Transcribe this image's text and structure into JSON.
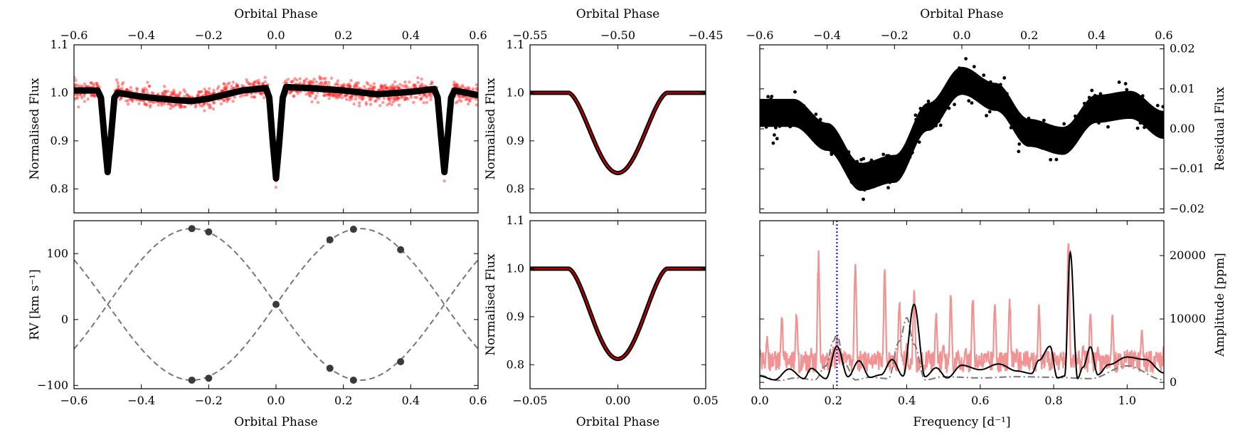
{
  "figure": {
    "panels": {
      "lc": {
        "ylabel": "Normalised Flux",
        "top_xlabel": "Orbital Phase",
        "xlim": [
          -0.6,
          0.6
        ],
        "ylim": [
          0.75,
          1.1
        ],
        "xticks": [
          -0.6,
          -0.4,
          -0.2,
          0.0,
          0.2,
          0.4,
          0.6
        ],
        "xtick_labels": [
          "−0.6",
          "−0.4",
          "−0.2",
          "0.0",
          "0.2",
          "0.4",
          "0.6"
        ],
        "yticks": [
          0.8,
          0.9,
          1.0,
          1.1
        ],
        "ytick_labels": [
          "0.8",
          "0.9",
          "1.0",
          "1.1"
        ]
      },
      "rv": {
        "ylabel": "RV [km s⁻¹]",
        "xlabel": "Orbital Phase",
        "xlim": [
          -0.6,
          0.6
        ],
        "ylim": [
          -105,
          150
        ],
        "xticks": [
          -0.6,
          -0.4,
          -0.2,
          0.0,
          0.2,
          0.4,
          0.6
        ],
        "xtick_labels": [
          "−0.6",
          "−0.4",
          "−0.2",
          "0.0",
          "0.2",
          "0.4",
          "0.6"
        ],
        "yticks": [
          -100,
          0,
          100
        ],
        "ytick_labels": [
          "−100",
          "0",
          "100"
        ]
      },
      "ecl_top": {
        "ylabel": "Normalised Flux",
        "top_xlabel": "Orbital Phase",
        "xlim": [
          -0.55,
          -0.45
        ],
        "ylim": [
          0.75,
          1.1
        ],
        "xticks": [
          -0.55,
          -0.5,
          -0.45
        ],
        "xtick_labels": [
          "−0.55",
          "−0.50",
          "−0.45"
        ],
        "yticks": [
          0.8,
          0.9,
          1.0,
          1.1
        ],
        "ytick_labels": [
          "0.8",
          "0.9",
          "1.0",
          "1.1"
        ]
      },
      "ecl_bot": {
        "ylabel": "Normalised Flux",
        "xlabel": "Orbital Phase",
        "xlim": [
          -0.05,
          0.05
        ],
        "ylim": [
          0.75,
          1.1
        ],
        "xticks": [
          -0.05,
          0.0,
          0.05
        ],
        "xtick_labels": [
          "−0.05",
          "0.00",
          "0.05"
        ],
        "yticks": [
          0.8,
          0.9,
          1.0,
          1.1
        ],
        "ytick_labels": [
          "0.8",
          "0.9",
          "1.0",
          "1.1"
        ]
      },
      "resid": {
        "ylabel": "Residual Flux",
        "top_xlabel": "Orbital Phase",
        "xlim": [
          -0.6,
          0.6
        ],
        "ylim": [
          -0.021,
          0.021
        ],
        "xticks": [
          -0.6,
          -0.4,
          -0.2,
          0.0,
          0.2,
          0.4,
          0.6
        ],
        "xtick_labels": [
          "−0.6",
          "−0.4",
          "−0.2",
          "0.0",
          "0.2",
          "0.4",
          "0.6"
        ],
        "yticks": [
          -0.02,
          -0.01,
          0.0,
          0.01,
          0.02
        ],
        "ytick_labels": [
          "−0.02",
          "−0.01",
          "0.00",
          "0.01",
          "0.02"
        ]
      },
      "periodogram": {
        "ylabel": "Amplitude [ppm]",
        "xlabel": "Frequency [d⁻¹]",
        "xlim": [
          0.0,
          1.1
        ],
        "ylim": [
          -1000,
          25500
        ],
        "xticks": [
          0.0,
          0.2,
          0.4,
          0.6,
          0.8,
          1.0
        ],
        "xtick_labels": [
          "0.0",
          "0.2",
          "0.4",
          "0.6",
          "0.8",
          "1.0"
        ],
        "yticks": [
          0,
          10000,
          20000
        ],
        "ytick_labels": [
          "0",
          "10000",
          "20000"
        ]
      }
    }
  },
  "chart_data": [
    {
      "type": "scatter",
      "panel": "lc",
      "description_note": "Phase-folded light curve with eclipse model",
      "model": {
        "x": [
          -0.6,
          -0.53,
          -0.52,
          -0.51,
          -0.5,
          -0.49,
          -0.48,
          -0.47,
          -0.4,
          -0.3,
          -0.25,
          -0.2,
          -0.1,
          -0.03,
          -0.02,
          -0.01,
          0.0,
          0.01,
          0.02,
          0.03,
          0.1,
          0.2,
          0.3,
          0.4,
          0.47,
          0.48,
          0.49,
          0.5,
          0.51,
          0.52,
          0.53,
          0.6
        ],
        "y": [
          1.005,
          1.005,
          0.99,
          0.91,
          0.835,
          0.91,
          0.99,
          1.0,
          0.992,
          0.985,
          0.983,
          0.988,
          1.005,
          1.01,
          0.99,
          0.9,
          0.822,
          0.9,
          0.99,
          1.012,
          1.01,
          1.005,
          0.997,
          1.002,
          1.008,
          0.99,
          0.91,
          0.835,
          0.91,
          0.99,
          1.005,
          0.995
        ]
      },
      "observations_scatter": 0.018,
      "colors": {
        "observations": "#ff2020",
        "model": "#000000"
      }
    },
    {
      "type": "scatter",
      "panel": "rv",
      "series": [
        {
          "name": "primary",
          "x": [
            -0.25,
            -0.2,
            0.0,
            0.16,
            0.23,
            0.37
          ],
          "y": [
            138,
            133,
            23,
            121,
            137,
            106
          ]
        },
        {
          "name": "secondary",
          "x": [
            -0.25,
            -0.2,
            0.16,
            0.23,
            0.37
          ],
          "y": [
            -92,
            -89,
            -74,
            -92,
            -64
          ]
        }
      ],
      "model": {
        "gamma": 23,
        "K1": 115,
        "K2": 115
      },
      "colors": {
        "points": "#3a3a3a",
        "model": "#777777"
      }
    },
    {
      "type": "line",
      "panel": "ecl_top",
      "model": {
        "x": [
          -0.55,
          -0.528,
          -0.5,
          -0.472,
          -0.45
        ],
        "y": [
          1.0,
          1.0,
          0.833,
          1.0,
          1.0
        ]
      },
      "colors": {
        "observations": "#000000",
        "model": "#cc0000"
      }
    },
    {
      "type": "line",
      "panel": "ecl_bot",
      "model": {
        "x": [
          -0.05,
          -0.028,
          0.0,
          0.028,
          0.05
        ],
        "y": [
          1.0,
          1.0,
          0.812,
          1.0,
          1.0
        ]
      },
      "colors": {
        "observations": "#000000",
        "model": "#cc0000"
      }
    },
    {
      "type": "scatter",
      "panel": "resid",
      "model": {
        "x": [
          -0.6,
          -0.5,
          -0.4,
          -0.3,
          -0.2,
          -0.1,
          0.0,
          0.1,
          0.2,
          0.3,
          0.4,
          0.5,
          0.6
        ],
        "y": [
          0.004,
          0.004,
          -0.002,
          -0.012,
          -0.01,
          0.003,
          0.012,
          0.008,
          -0.001,
          -0.003,
          0.005,
          0.006,
          0.001
        ]
      },
      "band_halfwidth": 0.0035,
      "colors": {
        "points": "#000000"
      }
    },
    {
      "type": "line",
      "panel": "periodogram",
      "series": [
        {
          "name": "observed",
          "x": [
            0.0,
            0.02,
            0.04,
            0.06,
            0.08,
            0.1,
            0.12,
            0.14,
            0.16,
            0.18,
            0.2,
            0.21,
            0.22,
            0.24,
            0.26,
            0.28,
            0.3,
            0.32,
            0.34,
            0.36,
            0.38,
            0.4,
            0.42,
            0.44,
            0.46,
            0.48,
            0.5,
            0.52,
            0.54,
            0.56,
            0.58,
            0.6,
            0.62,
            0.64,
            0.66,
            0.68,
            0.7,
            0.72,
            0.74,
            0.76,
            0.78,
            0.8,
            0.82,
            0.84,
            0.86,
            0.88,
            0.9,
            0.92,
            0.94,
            0.96,
            0.98,
            1.0,
            1.02,
            1.04,
            1.06,
            1.08,
            1.1
          ],
          "y": [
            5500,
            7500,
            4200,
            11000,
            3800,
            12000,
            4200,
            5500,
            21000,
            4400,
            5800,
            7700,
            5200,
            4600,
            20000,
            4800,
            3800,
            4400,
            18000,
            3900,
            14000,
            6200,
            15500,
            3300,
            5500,
            12000,
            6800,
            14500,
            4600,
            5800,
            15000,
            3600,
            4200,
            13500,
            3900,
            14000,
            5600,
            4200,
            4800,
            12500,
            5400,
            3600,
            4600,
            24000,
            4800,
            6200,
            12000,
            5800,
            3400,
            11000,
            4600,
            5200,
            3400,
            9000,
            4200,
            5200,
            6000
          ]
        },
        {
          "name": "model",
          "x": [
            0.0,
            0.04,
            0.08,
            0.12,
            0.14,
            0.18,
            0.21,
            0.24,
            0.27,
            0.3,
            0.33,
            0.36,
            0.39,
            0.42,
            0.45,
            0.48,
            0.51,
            0.55,
            0.6,
            0.65,
            0.7,
            0.74,
            0.76,
            0.79,
            0.81,
            0.83,
            0.845,
            0.865,
            0.88,
            0.9,
            0.92,
            0.95,
            1.0,
            1.05,
            1.1
          ],
          "y": [
            1000,
            400,
            2100,
            600,
            2200,
            600,
            5700,
            900,
            3400,
            800,
            1200,
            3600,
            1000,
            12300,
            900,
            2300,
            700,
            2700,
            2000,
            2900,
            1800,
            1400,
            3500,
            5700,
            700,
            1000,
            20500,
            600,
            2400,
            5600,
            1200,
            2800,
            4000,
            3600,
            1500
          ]
        },
        {
          "name": "window",
          "x": [
            0.0,
            0.05,
            0.1,
            0.15,
            0.18,
            0.2,
            0.21,
            0.23,
            0.26,
            0.3,
            0.35,
            0.38,
            0.4,
            0.42,
            0.45,
            0.5,
            0.6,
            0.7,
            0.8,
            0.9,
            1.0,
            1.1
          ],
          "y": [
            1100,
            300,
            700,
            400,
            2600,
            6500,
            7600,
            3000,
            400,
            800,
            600,
            6500,
            10200,
            6000,
            400,
            900,
            700,
            900,
            800,
            600,
            2600,
            400
          ]
        }
      ],
      "marker_frequency": 0.21,
      "colors": {
        "observed": "#f08080",
        "model": "#000000",
        "window": "#777777",
        "marker": "#0000cc"
      }
    }
  ]
}
